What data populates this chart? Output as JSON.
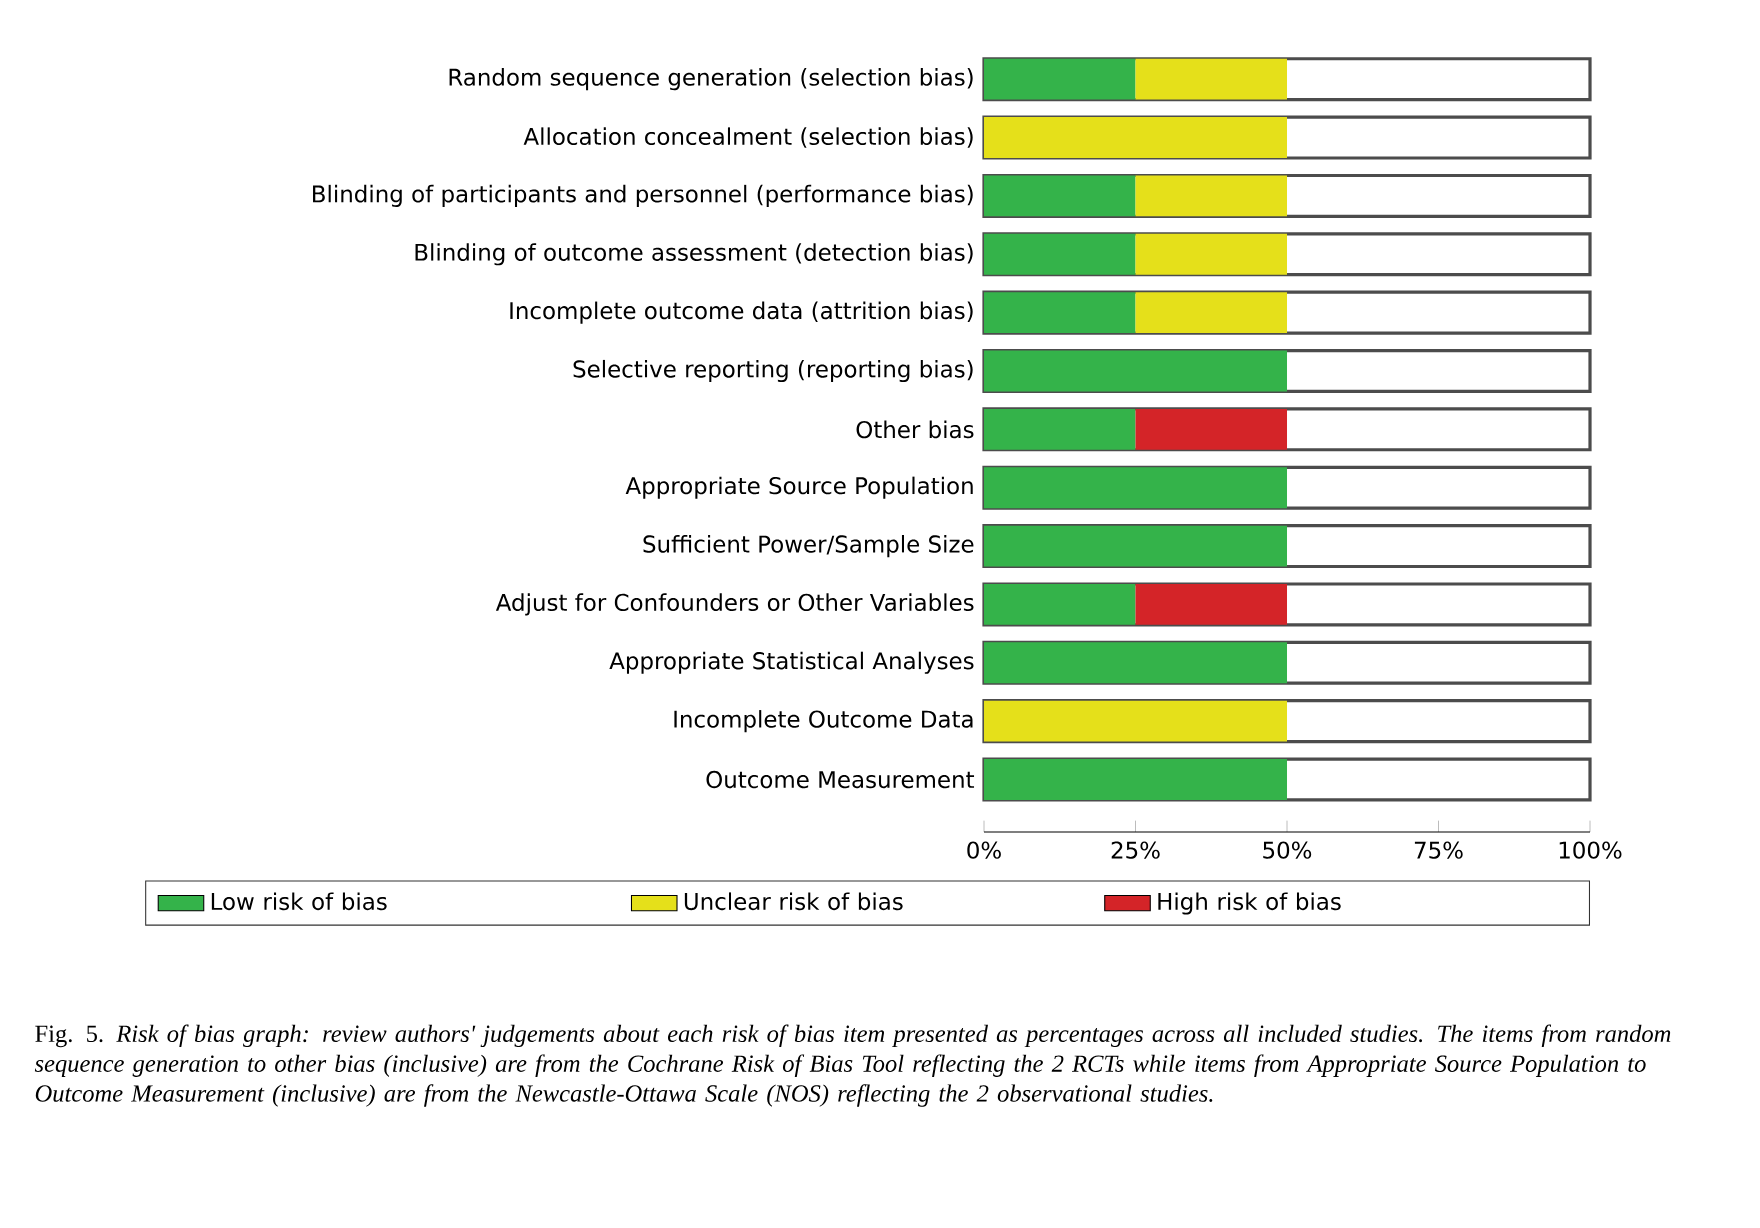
{
  "chart_data": {
    "type": "bar",
    "orientation": "horizontal",
    "stacked": true,
    "legend": "bottom",
    "categories": [
      "Random sequence generation (selection bias)",
      "Allocation concealment (selection bias)",
      "Blinding of participants and personnel (performance bias)",
      "Blinding of outcome assessment (detection bias)",
      "Incomplete outcome data (attrition bias)",
      "Selective reporting (reporting bias)",
      "Other bias",
      "Appropriate Source Population",
      "Sufficient Power/Sample Size",
      "Adjust for Confounders or Other Variables",
      "Appropriate Statistical Analyses",
      "Incomplete Outcome Data",
      "Outcome Measurement"
    ],
    "series": [
      {
        "name": "Low risk of bias",
        "color": "#34b34a",
        "values": [
          25,
          null,
          25,
          25,
          25,
          50,
          25,
          50,
          50,
          25,
          50,
          null,
          50
        ]
      },
      {
        "name": "Unclear risk of bias",
        "color": "#e5e01a",
        "values": [
          25,
          50,
          25,
          25,
          25,
          null,
          null,
          null,
          null,
          null,
          null,
          50,
          null
        ]
      },
      {
        "name": "High risk of bias",
        "color": "#d42428",
        "values": [
          null,
          null,
          null,
          null,
          null,
          null,
          25,
          null,
          null,
          25,
          null,
          null,
          null
        ]
      }
    ],
    "xlim": [
      0,
      100
    ],
    "xticks": [
      {
        "value": 0,
        "label": "0%"
      },
      {
        "value": 25,
        "label": "25%"
      },
      {
        "value": 50,
        "label": "50%"
      },
      {
        "value": 75,
        "label": "75%"
      },
      {
        "value": 100,
        "label": "100%"
      }
    ],
    "annotations": [
      "Fig. 5. *Risk of bias graph: review authors' judgements about each risk of bias item presented as percentages across all included studies. The items from random sequence generation to other bias (inclusive) are from the Cochrane Risk of Bias Tool reflecting the 2 RCTs while items from Appropriate Source Population to Outcome Measurement (inclusive) are from the Newcastle-Ottawa Scale (NOS) reflecting the 2 observational studies.*"
    ]
  }
}
